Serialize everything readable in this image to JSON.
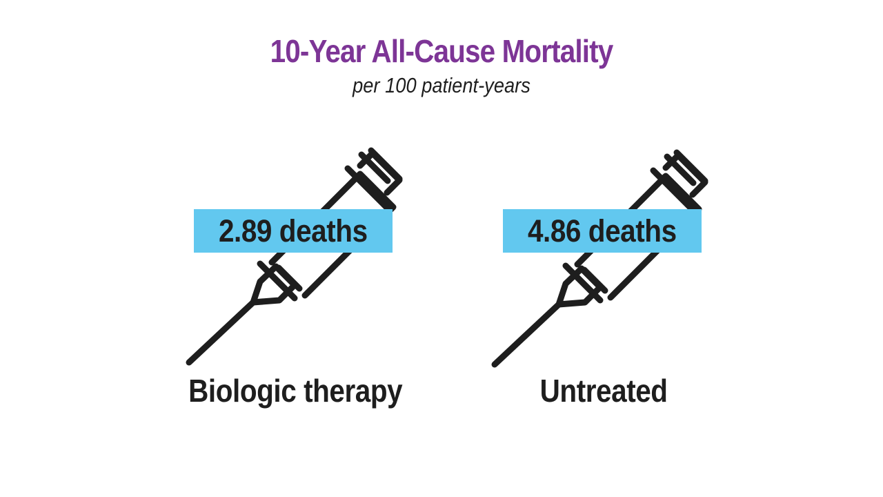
{
  "header": {
    "title": "10-Year All-Cause Mortality",
    "subtitle": "per 100 patient-years"
  },
  "colors": {
    "title": "#7d3596",
    "box": "#62c8ef",
    "ink": "#1e1e1e",
    "background": "#ffffff"
  },
  "panels": [
    {
      "value_label": "2.89 deaths",
      "group_label": "Biologic therapy",
      "icon": "syringe-icon"
    },
    {
      "value_label": "4.86 deaths",
      "group_label": "Untreated",
      "icon": "syringe-icon"
    }
  ]
}
